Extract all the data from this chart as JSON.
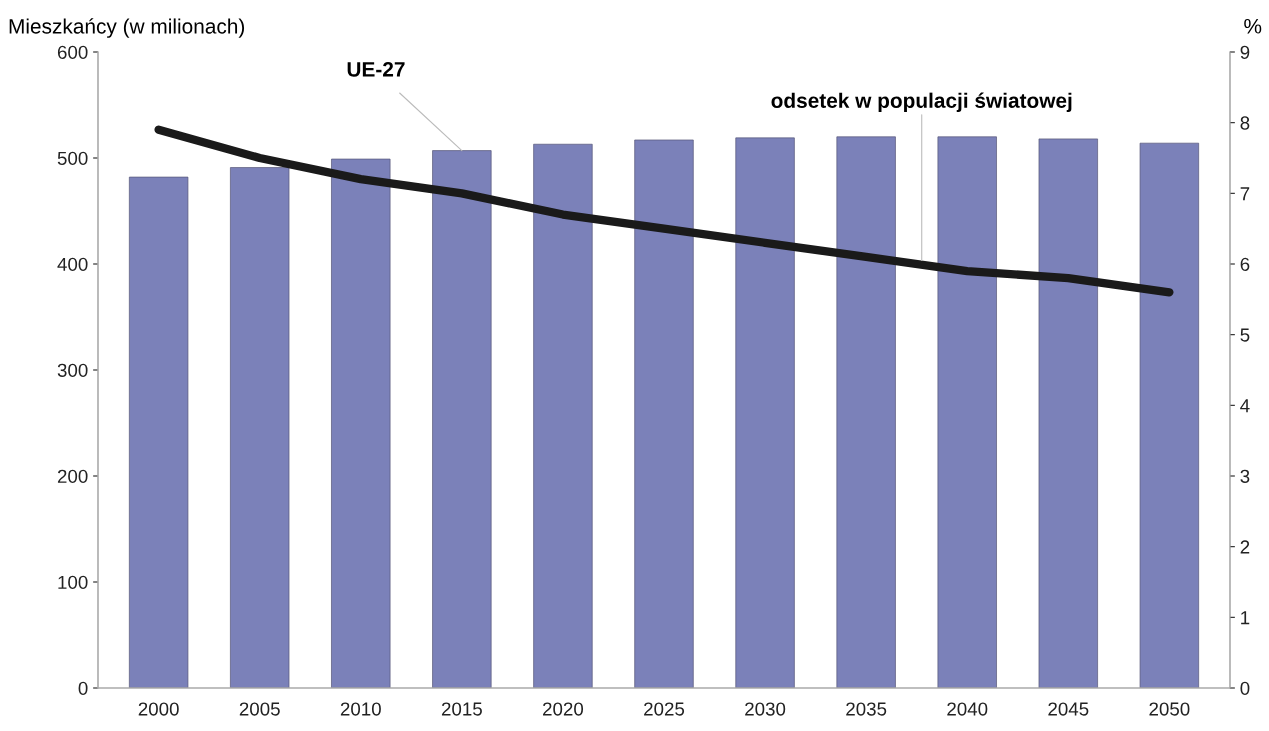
{
  "chart_data": {
    "type": "bar",
    "ylabel": "Mieszkańcy (w milionach)",
    "y2label": "%",
    "categories": [
      "2000",
      "2005",
      "2010",
      "2015",
      "2020",
      "2025",
      "2030",
      "2035",
      "2040",
      "2045",
      "2050"
    ],
    "series": [
      {
        "name": "UE-27",
        "color": "#7b81b9",
        "values": [
          482,
          491,
          499,
          507,
          513,
          517,
          519,
          520,
          520,
          518,
          514
        ]
      },
      {
        "name": "odsetek w populacji światowej",
        "type": "line",
        "axis": "y2",
        "color": "#1a1a1a",
        "values": [
          7.9,
          7.5,
          7.2,
          7.0,
          6.7,
          6.5,
          6.3,
          6.1,
          5.9,
          5.8,
          5.6
        ]
      }
    ],
    "ylim": [
      0,
      600
    ],
    "yticks": [
      0,
      100,
      200,
      300,
      400,
      500,
      600
    ],
    "y2lim": [
      0,
      9
    ],
    "y2ticks": [
      0,
      1,
      2,
      3,
      4,
      5,
      6,
      7,
      8,
      9
    ],
    "grid": false,
    "legend": false,
    "marker": "none",
    "line_style": "solid"
  }
}
